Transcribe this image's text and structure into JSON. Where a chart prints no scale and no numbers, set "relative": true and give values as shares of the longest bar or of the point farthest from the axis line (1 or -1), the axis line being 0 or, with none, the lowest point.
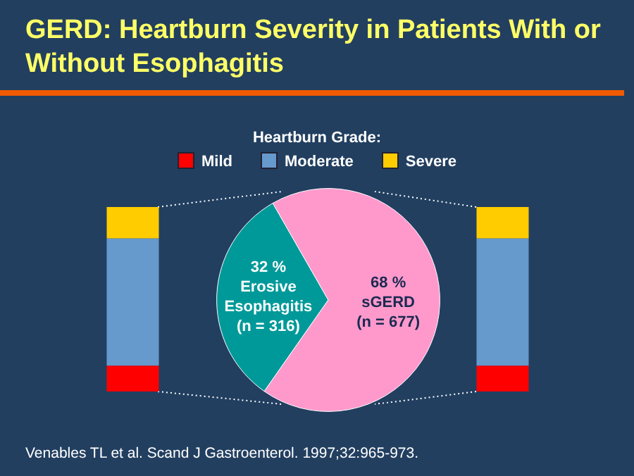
{
  "chart_data": [
    {
      "type": "bar",
      "stacked": true,
      "relative": true,
      "categories": [
        null,
        null
      ],
      "legend": "top",
      "legend_title": "Heartburn Grade:",
      "series": [
        {
          "name": "Mild",
          "color": "#ff0000",
          "values": [
            0.14,
            0.14
          ]
        },
        {
          "name": "Moderate",
          "color": "#6699cc",
          "values": [
            0.69,
            0.69
          ]
        },
        {
          "name": "Severe",
          "color": "#ffcc00",
          "values": [
            0.17,
            0.17
          ]
        }
      ]
    },
    {
      "type": "pie",
      "title": "GERD: Heartburn Severity in Patients With or Without Esophagitis",
      "categories": [
        "Erosive\nEsophagitis\n(n = 316)",
        "sGERD\n(n = 677)"
      ],
      "values": [
        32,
        68
      ],
      "value_labels": [
        "32 %",
        "68 %"
      ],
      "colors": [
        "#009999",
        "#ff99cc"
      ],
      "annotations": [
        "Venables TL et al. Scand J Gastroenterol. 1997;32:965-973."
      ]
    }
  ]
}
